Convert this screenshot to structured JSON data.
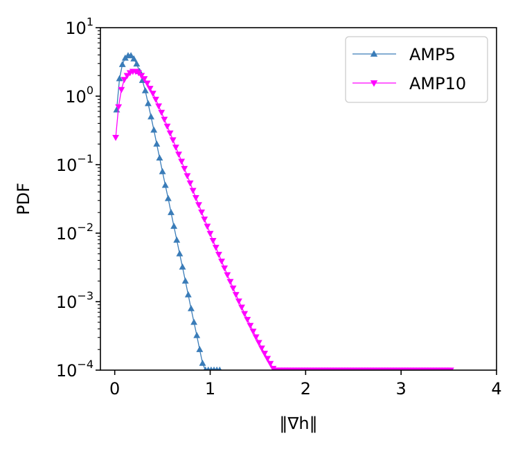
{
  "chart_data": {
    "type": "line",
    "xlabel": "‖∇h‖",
    "ylabel": "PDF",
    "xlim": [
      -0.15,
      4
    ],
    "ylim": [
      0.0001,
      10
    ],
    "yscale": "log",
    "x_ticks": [
      "0",
      "1",
      "2",
      "3",
      "4"
    ],
    "y_ticks": [
      {
        "base": "10",
        "exp": "1"
      },
      {
        "base": "10",
        "exp": "0"
      },
      {
        "base": "10",
        "exp": "−1"
      },
      {
        "base": "10",
        "exp": "−2"
      },
      {
        "base": "10",
        "exp": "−3"
      },
      {
        "base": "10",
        "exp": "−4"
      }
    ],
    "grid": false,
    "legend": {
      "position": "top-right"
    },
    "series": [
      {
        "name": "AMP5",
        "color": "#3a7cb8",
        "marker": "triangle-up",
        "x": [
          0.02,
          0.05,
          0.08,
          0.11,
          0.14,
          0.17,
          0.2,
          0.23,
          0.26,
          0.29,
          0.32,
          0.35,
          0.38,
          0.41,
          0.44,
          0.47,
          0.5,
          0.53,
          0.56,
          0.59,
          0.62,
          0.65,
          0.68,
          0.71,
          0.74,
          0.77,
          0.8,
          0.83,
          0.86,
          0.89,
          0.92,
          0.95,
          0.98,
          1.01,
          1.04,
          1.07,
          1.1
        ],
        "y": [
          0.63,
          1.8,
          2.9,
          3.6,
          3.9,
          3.9,
          3.5,
          2.95,
          2.3,
          1.7,
          1.2,
          0.78,
          0.5,
          0.32,
          0.2,
          0.125,
          0.079,
          0.05,
          0.032,
          0.02,
          0.0126,
          0.0079,
          0.005,
          0.0032,
          0.002,
          0.00126,
          0.00079,
          0.0005,
          0.00032,
          0.0002,
          0.000126,
          0.0001,
          0.0001,
          0.0001,
          0.0001,
          0.0001,
          0.0001
        ]
      },
      {
        "name": "AMP10",
        "color": "#ff00ff",
        "marker": "triangle-down",
        "x": [
          0.01,
          0.04,
          0.07,
          0.1,
          0.13,
          0.16,
          0.19,
          0.22,
          0.25,
          0.28,
          0.31,
          0.34,
          0.37,
          0.4,
          0.43,
          0.46,
          0.49,
          0.52,
          0.55,
          0.58,
          0.61,
          0.64,
          0.67,
          0.7,
          0.73,
          0.76,
          0.79,
          0.82,
          0.85,
          0.88,
          0.91,
          0.94,
          0.97,
          1.0,
          1.03,
          1.06,
          1.09,
          1.12,
          1.15,
          1.18,
          1.21,
          1.24,
          1.27,
          1.3,
          1.33,
          1.36,
          1.39,
          1.42,
          1.45,
          1.48,
          1.51,
          1.54,
          1.57,
          1.6,
          1.63,
          1.66,
          1.69,
          1.72,
          1.75,
          1.78,
          1.81,
          1.84,
          1.87,
          1.9,
          1.93,
          1.96,
          1.99,
          2.02,
          2.05,
          2.08,
          2.11,
          2.14,
          2.17,
          2.2,
          2.23,
          2.26,
          2.29,
          2.32,
          2.35,
          2.38,
          2.41,
          2.44,
          2.47,
          2.5,
          2.53,
          2.56,
          2.59,
          2.62,
          2.65,
          2.68,
          2.71,
          2.74,
          2.77,
          2.8,
          2.83,
          2.86,
          2.89,
          2.92,
          2.95,
          2.98,
          3.01,
          3.04,
          3.07,
          3.1,
          3.13,
          3.16,
          3.19,
          3.22,
          3.25,
          3.28,
          3.31,
          3.34,
          3.37,
          3.4,
          3.43,
          3.46,
          3.49,
          3.52
        ],
        "y": [
          0.25,
          0.7,
          1.25,
          1.75,
          2.0,
          2.2,
          2.3,
          2.3,
          2.2,
          2.0,
          1.8,
          1.55,
          1.3,
          1.1,
          0.9,
          0.72,
          0.58,
          0.46,
          0.365,
          0.29,
          0.23,
          0.18,
          0.142,
          0.112,
          0.088,
          0.069,
          0.054,
          0.042,
          0.033,
          0.026,
          0.0203,
          0.016,
          0.0126,
          0.0099,
          0.0078,
          0.0062,
          0.0049,
          0.0039,
          0.0031,
          0.00247,
          0.00197,
          0.00158,
          0.00127,
          0.00102,
          0.00083,
          0.00067,
          0.00055,
          0.00045,
          0.00037,
          0.000305,
          0.000253,
          0.00021,
          0.000176,
          0.000148,
          0.000125,
          0.000106,
          0.0001,
          0.0001,
          0.0001,
          0.0001,
          0.0001,
          0.0001,
          0.0001,
          0.0001,
          0.0001,
          0.0001,
          0.0001,
          0.0001,
          0.0001,
          0.0001,
          0.0001,
          0.0001,
          0.0001,
          0.0001,
          0.0001,
          0.0001,
          0.0001,
          0.0001,
          0.0001,
          0.0001,
          0.0001,
          0.0001,
          0.0001,
          0.0001,
          0.0001,
          0.0001,
          0.0001,
          0.0001,
          0.0001,
          0.0001,
          0.0001,
          0.0001,
          0.0001,
          0.0001,
          0.0001,
          0.0001,
          0.0001,
          0.0001,
          0.0001,
          0.0001,
          0.0001,
          0.0001,
          0.0001,
          0.0001,
          0.0001,
          0.0001,
          0.0001,
          0.0001,
          0.0001,
          0.0001,
          0.0001,
          0.0001,
          0.0001,
          0.0001,
          0.0001,
          0.0001,
          0.0001,
          0.0001
        ]
      }
    ]
  }
}
